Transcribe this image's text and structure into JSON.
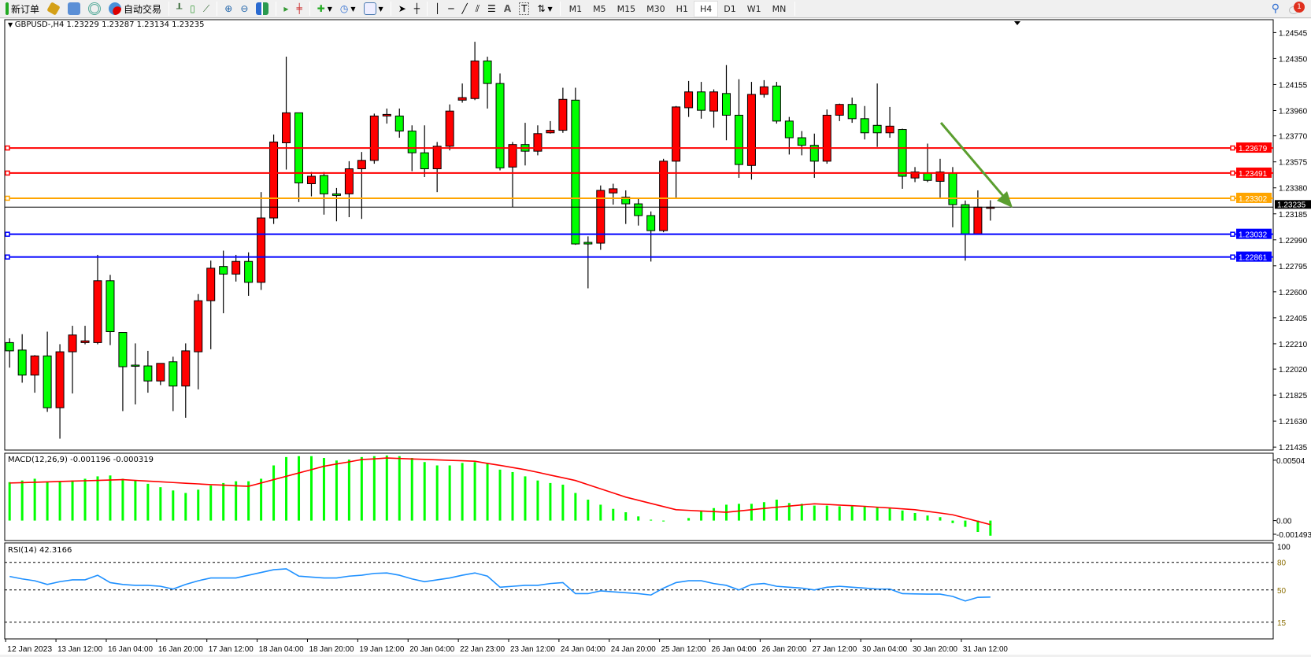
{
  "toolbar": {
    "new_order": "新订单",
    "auto_trading": "自动交易",
    "timeframes": [
      "M1",
      "M5",
      "M15",
      "M30",
      "H1",
      "H4",
      "D1",
      "W1",
      "MN"
    ],
    "active_timeframe": "H4",
    "notification_count": "1"
  },
  "chart": {
    "header": "GBPUSD-,H4  1.23229 1.23287 1.23134 1.23235",
    "bull_color": "#ff0000",
    "bear_color": "#00ff00",
    "price_ticks": [
      "1.24545",
      "1.24350",
      "1.24155",
      "1.23960",
      "1.23770",
      "1.23575",
      "1.23380",
      "1.23185",
      "1.22990",
      "1.22795",
      "1.22600",
      "1.22405",
      "1.22210",
      "1.22020",
      "1.21825",
      "1.21630",
      "1.21435"
    ],
    "ylim": [
      1.21435,
      1.24545
    ],
    "current_price": "1.23235",
    "levels": [
      {
        "price": 1.23679,
        "label": "1.23679",
        "color": "#ff0000"
      },
      {
        "price": 1.23491,
        "label": "1.23491",
        "color": "#ff0000"
      },
      {
        "price": 1.23302,
        "label": "1.23302",
        "color": "#ffa500"
      },
      {
        "price": 1.23032,
        "label": "1.23032",
        "color": "#0000ff"
      },
      {
        "price": 1.22861,
        "label": "1.22861",
        "color": "#0000ff"
      }
    ],
    "arrow_color": "#5a9e2f",
    "time_labels": [
      "12 Jan 2023",
      "13 Jan 12:00",
      "16 Jan 04:00",
      "16 Jan 20:00",
      "17 Jan 12:00",
      "18 Jan 04:00",
      "18 Jan 20:00",
      "19 Jan 12:00",
      "20 Jan 04:00",
      "22 Jan 23:00",
      "23 Jan 12:00",
      "24 Jan 04:00",
      "24 Jan 20:00",
      "25 Jan 12:00",
      "26 Jan 04:00",
      "26 Jan 20:00",
      "27 Jan 12:00",
      "30 Jan 04:00",
      "30 Jan 20:00",
      "31 Jan 12:00"
    ]
  },
  "chart_data": {
    "type": "candlestick",
    "ohlc": [
      [
        1.22219,
        1.22251,
        1.22031,
        1.22157
      ],
      [
        1.22163,
        1.22282,
        1.21918,
        1.21975
      ],
      [
        1.21975,
        1.22125,
        1.21843,
        1.22119
      ],
      [
        1.22119,
        1.22301,
        1.21699,
        1.2173
      ],
      [
        1.2173,
        1.22207,
        1.21498,
        1.2215
      ],
      [
        1.2215,
        1.22345,
        1.21837,
        1.22276
      ],
      [
        1.22219,
        1.22345,
        1.22206,
        1.22232
      ],
      [
        1.22219,
        1.22877,
        1.22206,
        1.22683
      ],
      [
        1.22683,
        1.22727,
        1.222,
        1.22301
      ],
      [
        1.22295,
        1.22295,
        1.21705,
        1.22038
      ],
      [
        1.2205,
        1.22213,
        1.21755,
        1.22044
      ],
      [
        1.22044,
        1.22157,
        1.21843,
        1.21931
      ],
      [
        1.21931,
        1.22063,
        1.219,
        1.22063
      ],
      [
        1.22075,
        1.22113,
        1.21705,
        1.21893
      ],
      [
        1.21893,
        1.22213,
        1.21655,
        1.22157
      ],
      [
        1.2215,
        1.22583,
        1.21868,
        1.22533
      ],
      [
        1.22533,
        1.22834,
        1.22169,
        1.22777
      ],
      [
        1.2279,
        1.22909,
        1.22439,
        1.22733
      ],
      [
        1.22733,
        1.22877,
        1.22677,
        1.22828
      ],
      [
        1.22828,
        1.22896,
        1.2257,
        1.22671
      ],
      [
        1.22671,
        1.23348,
        1.22614,
        1.23154
      ],
      [
        1.23154,
        1.2378,
        1.23109,
        1.23724
      ],
      [
        1.23718,
        1.24364,
        1.23517,
        1.23943
      ],
      [
        1.23943,
        1.23943,
        1.23273,
        1.23417
      ],
      [
        1.23411,
        1.23499,
        1.23316,
        1.23467
      ],
      [
        1.23473,
        1.23499,
        1.23179,
        1.23335
      ],
      [
        1.23335,
        1.23379,
        1.23129,
        1.23323
      ],
      [
        1.23335,
        1.2358,
        1.2316,
        1.23523
      ],
      [
        1.23523,
        1.23649,
        1.23147,
        1.23586
      ],
      [
        1.23586,
        1.23937,
        1.23561,
        1.23919
      ],
      [
        1.23919,
        1.23975,
        1.23862,
        1.23931
      ],
      [
        1.23919,
        1.23975,
        1.23756,
        1.23806
      ],
      [
        1.23806,
        1.23849,
        1.23505,
        1.23643
      ],
      [
        1.23643,
        1.23849,
        1.23461,
        1.23523
      ],
      [
        1.23523,
        1.23724,
        1.23348,
        1.23692
      ],
      [
        1.23692,
        1.24006,
        1.23661,
        1.23956
      ],
      [
        1.24038,
        1.24163,
        1.24019,
        1.24057
      ],
      [
        1.2405,
        1.24476,
        1.24038,
        1.24332
      ],
      [
        1.24332,
        1.24364,
        1.23975,
        1.24163
      ],
      [
        1.24163,
        1.24238,
        1.23511,
        1.2353
      ],
      [
        1.23536,
        1.23724,
        1.23235,
        1.23705
      ],
      [
        1.23705,
        1.23868,
        1.23548,
        1.23655
      ],
      [
        1.23655,
        1.23849,
        1.23624,
        1.23787
      ],
      [
        1.23793,
        1.23881,
        1.23787,
        1.23812
      ],
      [
        1.23812,
        1.24131,
        1.23793,
        1.24044
      ],
      [
        1.24038,
        1.24131,
        1.22953,
        1.22959
      ],
      [
        1.22971,
        1.23016,
        1.22626,
        1.22959
      ],
      [
        1.22965,
        1.23398,
        1.22915,
        1.23361
      ],
      [
        1.23342,
        1.23411,
        1.23254,
        1.23373
      ],
      [
        1.2331,
        1.23361,
        1.23109,
        1.2326
      ],
      [
        1.2326,
        1.23298,
        1.23097,
        1.23172
      ],
      [
        1.23172,
        1.23203,
        1.22827,
        1.23059
      ],
      [
        1.23059,
        1.23598,
        1.23047,
        1.2358
      ],
      [
        1.2358,
        1.23994,
        1.23298,
        1.23987
      ],
      [
        1.23981,
        1.24182,
        1.23912,
        1.241
      ],
      [
        1.241,
        1.24175,
        1.23899,
        1.23962
      ],
      [
        1.23956,
        1.24119,
        1.23831,
        1.241
      ],
      [
        1.24088,
        1.24301,
        1.23737,
        1.23925
      ],
      [
        1.23925,
        1.24195,
        1.23455,
        1.23555
      ],
      [
        1.23548,
        1.24175,
        1.23442,
        1.24081
      ],
      [
        1.24081,
        1.24188,
        1.24057,
        1.24138
      ],
      [
        1.24144,
        1.24175,
        1.23862,
        1.23881
      ],
      [
        1.23881,
        1.23912,
        1.2363,
        1.23756
      ],
      [
        1.23756,
        1.23806,
        1.23624,
        1.23699
      ],
      [
        1.23699,
        1.23787,
        1.23455,
        1.2358
      ],
      [
        1.2358,
        1.23968,
        1.23561,
        1.23925
      ],
      [
        1.23925,
        1.24012,
        1.23881,
        1.24006
      ],
      [
        1.24006,
        1.24057,
        1.23868,
        1.23899
      ],
      [
        1.23899,
        1.23994,
        1.23743,
        1.23793
      ],
      [
        1.23849,
        1.24163,
        1.23687,
        1.23793
      ],
      [
        1.23793,
        1.23987,
        1.23756,
        1.23843
      ],
      [
        1.23818,
        1.23824,
        1.23373,
        1.23467
      ],
      [
        1.23454,
        1.23536,
        1.23423,
        1.23499
      ],
      [
        1.23492,
        1.23712,
        1.23423,
        1.23436
      ],
      [
        1.23429,
        1.23598,
        1.23304,
        1.23499
      ],
      [
        1.23492,
        1.23536,
        1.23084,
        1.23254
      ],
      [
        1.23254,
        1.23285,
        1.22834,
        1.23034
      ],
      [
        1.23034,
        1.23361,
        1.23034,
        1.23235
      ],
      [
        1.23229,
        1.23287,
        1.23134,
        1.23235
      ]
    ],
    "macd": {
      "label": "MACD(12,26,9) -0.001196 -0.000319",
      "ticks": [
        "0.00504",
        "0.00",
        "-0.001493"
      ],
      "ylim": [
        -0.001493,
        0.00504
      ],
      "histogram_color": "#00ff00",
      "signal_color": "#ff0000",
      "histogram": [
        0.00305,
        0.00318,
        0.00332,
        0.00305,
        0.00312,
        0.00318,
        0.00332,
        0.00351,
        0.00358,
        0.00332,
        0.00318,
        0.00292,
        0.00265,
        0.00239,
        0.00219,
        0.00245,
        0.00278,
        0.00298,
        0.00312,
        0.00312,
        0.00332,
        0.00438,
        0.00504,
        0.00511,
        0.00511,
        0.00497,
        0.00477,
        0.00484,
        0.00504,
        0.00511,
        0.00517,
        0.00511,
        0.00497,
        0.00464,
        0.00438,
        0.00438,
        0.00457,
        0.00464,
        0.00457,
        0.00404,
        0.00385,
        0.00351,
        0.00318,
        0.00298,
        0.00285,
        0.00219,
        0.00166,
        0.00126,
        0.00093,
        0.00066,
        0.00033,
        7e-05,
        -7e-05,
        0.0,
        0.0002,
        0.00073,
        0.00099,
        0.00126,
        0.00133,
        0.00133,
        0.00146,
        0.00166,
        0.00139,
        0.00133,
        0.00119,
        0.00119,
        0.00113,
        0.00113,
        0.00113,
        0.00106,
        0.00099,
        0.0008,
        0.0006,
        0.0004,
        0.00027,
        -0.0002,
        -0.0005,
        -0.0009,
        -0.0012
      ],
      "signal": [
        0.00298,
        0.00301,
        0.00304,
        0.00307,
        0.0031,
        0.00313,
        0.00316,
        0.00319,
        0.00322,
        0.00325,
        0.00319,
        0.00313,
        0.00308,
        0.00302,
        0.00296,
        0.00291,
        0.00285,
        0.00281,
        0.00276,
        0.00272,
        0.00298,
        0.00325,
        0.00351,
        0.00378,
        0.00404,
        0.00431,
        0.00449,
        0.00466,
        0.00484,
        0.0049,
        0.00497,
        0.00493,
        0.00489,
        0.00486,
        0.00482,
        0.00478,
        0.00475,
        0.00471,
        0.00454,
        0.00438,
        0.00421,
        0.00404,
        0.00383,
        0.00361,
        0.0034,
        0.00318,
        0.00285,
        0.00252,
        0.00219,
        0.00186,
        0.00161,
        0.00136,
        0.00111,
        0.00086,
        0.00081,
        0.00076,
        0.00071,
        0.00066,
        0.00076,
        0.00086,
        0.00096,
        0.00106,
        0.00115,
        0.00124,
        0.00133,
        0.00128,
        0.00123,
        0.00118,
        0.00113,
        0.00106,
        0.001,
        0.00093,
        0.00086,
        0.00073,
        0.0006,
        0.00046,
        0.0002,
        -6e-05,
        -0.00032
      ]
    },
    "rsi": {
      "label": "RSI(14) 42.3166",
      "ticks": [
        "100",
        "80",
        "50",
        "15"
      ],
      "levels": [
        80,
        50,
        15
      ],
      "ylim": [
        0,
        100
      ],
      "color": "#1e90ff",
      "values": [
        64.7,
        62,
        60,
        56,
        59,
        61,
        61,
        66,
        58,
        56,
        55,
        55,
        54,
        51,
        56,
        60,
        63,
        63,
        63,
        66,
        69,
        72,
        73,
        65,
        64,
        63,
        63,
        65,
        66,
        68,
        68.5,
        66,
        62,
        59,
        61,
        63,
        66,
        68.5,
        65,
        53,
        54,
        55,
        55,
        57,
        58,
        46,
        46,
        49,
        48,
        47,
        46,
        44.5,
        52,
        58,
        60,
        60,
        57,
        55,
        50,
        56,
        57,
        54,
        53,
        52,
        50,
        53,
        54,
        53,
        52,
        51,
        51,
        46,
        45.7,
        45.5,
        45.5,
        43,
        38,
        42,
        42.3166
      ]
    }
  }
}
